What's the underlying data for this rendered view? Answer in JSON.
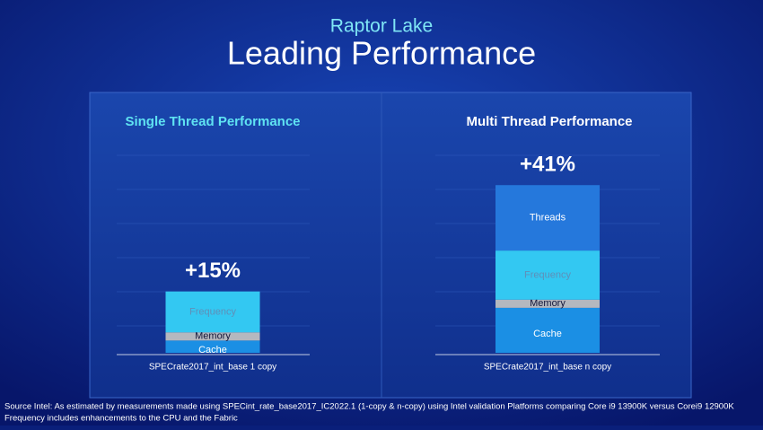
{
  "header": {
    "subtitle": "Raptor Lake",
    "title": "Leading Performance"
  },
  "chart_data": [
    {
      "type": "bar",
      "stacked": true,
      "title": "Single Thread Performance",
      "title_color": "#5fe3f2",
      "categories": [
        "SPECrate2017_int_base 1 copy"
      ],
      "series": [
        {
          "name": "Cache",
          "color": "#1b8fe4",
          "label_color": "#ffffff",
          "values": [
            3
          ]
        },
        {
          "name": "Memory",
          "color": "#b4b8bf",
          "label_color": "#14163a",
          "values": [
            2
          ]
        },
        {
          "name": "Frequency",
          "color": "#33c8f2",
          "label_color": "#5f8fb8",
          "values": [
            10
          ]
        }
      ],
      "ylim": [
        0,
        45
      ],
      "annotation": "+15%"
    },
    {
      "type": "bar",
      "stacked": true,
      "title": "Multi Thread Performance",
      "title_color": "#ffffff",
      "categories": [
        "SPECrate2017_int_base n copy"
      ],
      "series": [
        {
          "name": "Cache",
          "color": "#1b8fe4",
          "label_color": "#ffffff",
          "values": [
            11
          ]
        },
        {
          "name": "Memory",
          "color": "#b4b8bf",
          "label_color": "#14163a",
          "values": [
            2
          ]
        },
        {
          "name": "Frequency",
          "color": "#33c8f2",
          "label_color": "#5f8fb8",
          "values": [
            12
          ]
        },
        {
          "name": "Threads",
          "color": "#2578dc",
          "label_color": "#ffffff",
          "values": [
            16
          ]
        }
      ],
      "ylim": [
        0,
        45
      ],
      "annotation": "+41%"
    }
  ],
  "footer": {
    "lines": [
      "Source Intel: As estimated by measurements made using  SPECint_rate_base2017_IC2022.1 (1-copy & n-copy) using Intel validation Platforms comparing Core i9 13900K versus Corei9 12900K",
      "Frequency includes enhancements to the CPU and the Fabric"
    ]
  }
}
